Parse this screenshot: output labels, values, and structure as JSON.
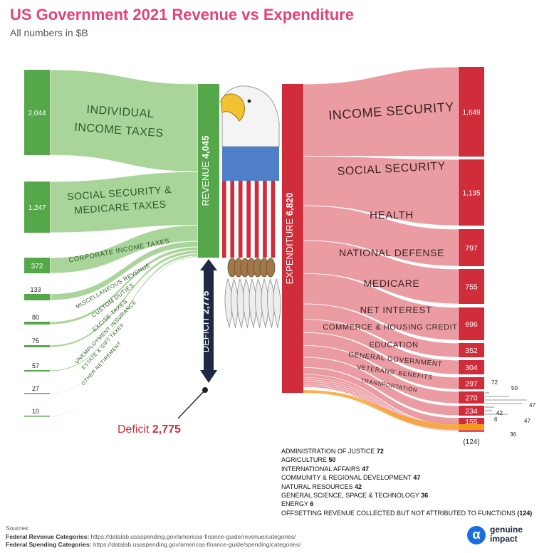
{
  "header": {
    "title": "US Government 2021 Revenue vs Expenditure",
    "subtitle": "All numbers in $B"
  },
  "colors": {
    "revenue_dark": "#55a84a",
    "revenue_light": "#a9d59a",
    "expenditure_dark": "#d12c3a",
    "expenditure_light": "#eb9ca3",
    "deficit": "#1e2a44",
    "offset": "#f59a1b",
    "title_pink": "#e8417a",
    "eagle_blue": "#4f7fc9"
  },
  "chart_data": {
    "type": "sankey",
    "title": "US Government 2021 Revenue vs Expenditure",
    "unit": "All numbers in $B",
    "revenue_total": {
      "label": "REVENUE",
      "value": "4,045"
    },
    "expenditure_total": {
      "label": "EXPENDITURE",
      "value": "6,820"
    },
    "deficit": {
      "label": "DEFICIT",
      "value": "2,775",
      "callout_label": "Deficit",
      "callout_value": "2,775"
    },
    "revenue_sources": [
      {
        "name": "INDIVIDUAL INCOME TAXES",
        "value": 2044,
        "display": "2,044"
      },
      {
        "name": "SOCIAL SECURITY & MEDICARE TAXES",
        "value": 1247,
        "display": "1,247"
      },
      {
        "name": "CORPORATE INCOME TAXES",
        "value": 372,
        "display": "372"
      },
      {
        "name": "MISCELLANEOUS REVENUE",
        "value": 133,
        "display": "133"
      },
      {
        "name": "CUSTOM DUTIES",
        "value": 80,
        "display": "80"
      },
      {
        "name": "EXCISE TAXES",
        "value": 75,
        "display": "75"
      },
      {
        "name": "UNEMPLOYMENT INSURANCE",
        "value": 57,
        "display": "57"
      },
      {
        "name": "ESTATE & GIFT TAXES",
        "value": 27,
        "display": "27"
      },
      {
        "name": "OTHER RETIREMENT",
        "value": 10,
        "display": "10"
      }
    ],
    "expenditures": [
      {
        "name": "INCOME SECURITY",
        "value": 1649,
        "display": "1,649"
      },
      {
        "name": "SOCIAL SECURITY",
        "value": 1135,
        "display": "1,135"
      },
      {
        "name": "HEALTH",
        "value": 797,
        "display": "797"
      },
      {
        "name": "NATIONAL DEFENSE",
        "value": 755,
        "display": "755"
      },
      {
        "name": "MEDICARE",
        "value": 696,
        "display": "696"
      },
      {
        "name": "NET INTEREST",
        "value": 352,
        "display": "352"
      },
      {
        "name": "COMMERCE & HOUSING CREDIT",
        "value": 304,
        "display": "304"
      },
      {
        "name": "EDUCATION",
        "value": 297,
        "display": "297"
      },
      {
        "name": "GENERAL GOVERNMENT",
        "value": 270,
        "display": "270"
      },
      {
        "name": "VETERANS' BENEFITS",
        "value": 234,
        "display": "234"
      },
      {
        "name": "TRANSPORTATION",
        "value": 155,
        "display": "155"
      }
    ],
    "minor_expenditures": [
      {
        "name": "ADMINISTRATION OF JUSTICE",
        "value": 72,
        "display": "72"
      },
      {
        "name": "AGRICULTURE",
        "value": 50,
        "display": "50"
      },
      {
        "name": "INTERNATIONAL AFFAIRS",
        "value": 47,
        "display": "47"
      },
      {
        "name": "COMMUNITY & REGIONAL DEVELOPMENT",
        "value": 47,
        "display": "47"
      },
      {
        "name": "NATURAL RESOURCES",
        "value": 42,
        "display": "42"
      },
      {
        "name": "GENERAL SCIENCE, SPACE & TECHNOLOGY",
        "value": 36,
        "display": "36"
      },
      {
        "name": "ENERGY",
        "value": 6,
        "display": "6"
      },
      {
        "name": "OFFSETTING REVENUE COLLECTED BUT NOT ATTRIBUTED TO FUNCTIONS",
        "value": -124,
        "display": "(124)"
      }
    ]
  },
  "sources": {
    "heading": "Sources:",
    "revenue_label": "Federal Revenue Categories:",
    "revenue_url": "https://datalab.usaspending.gov/americas-finance-guide/revenue/categories/",
    "spending_label": "Federal Spending Categories:",
    "spending_url": "https://datalab.usaspending.gov/americas-finance-guide/spending/categories/"
  },
  "logo": {
    "mark": "α",
    "line1": "genuine",
    "line2": "impact"
  }
}
